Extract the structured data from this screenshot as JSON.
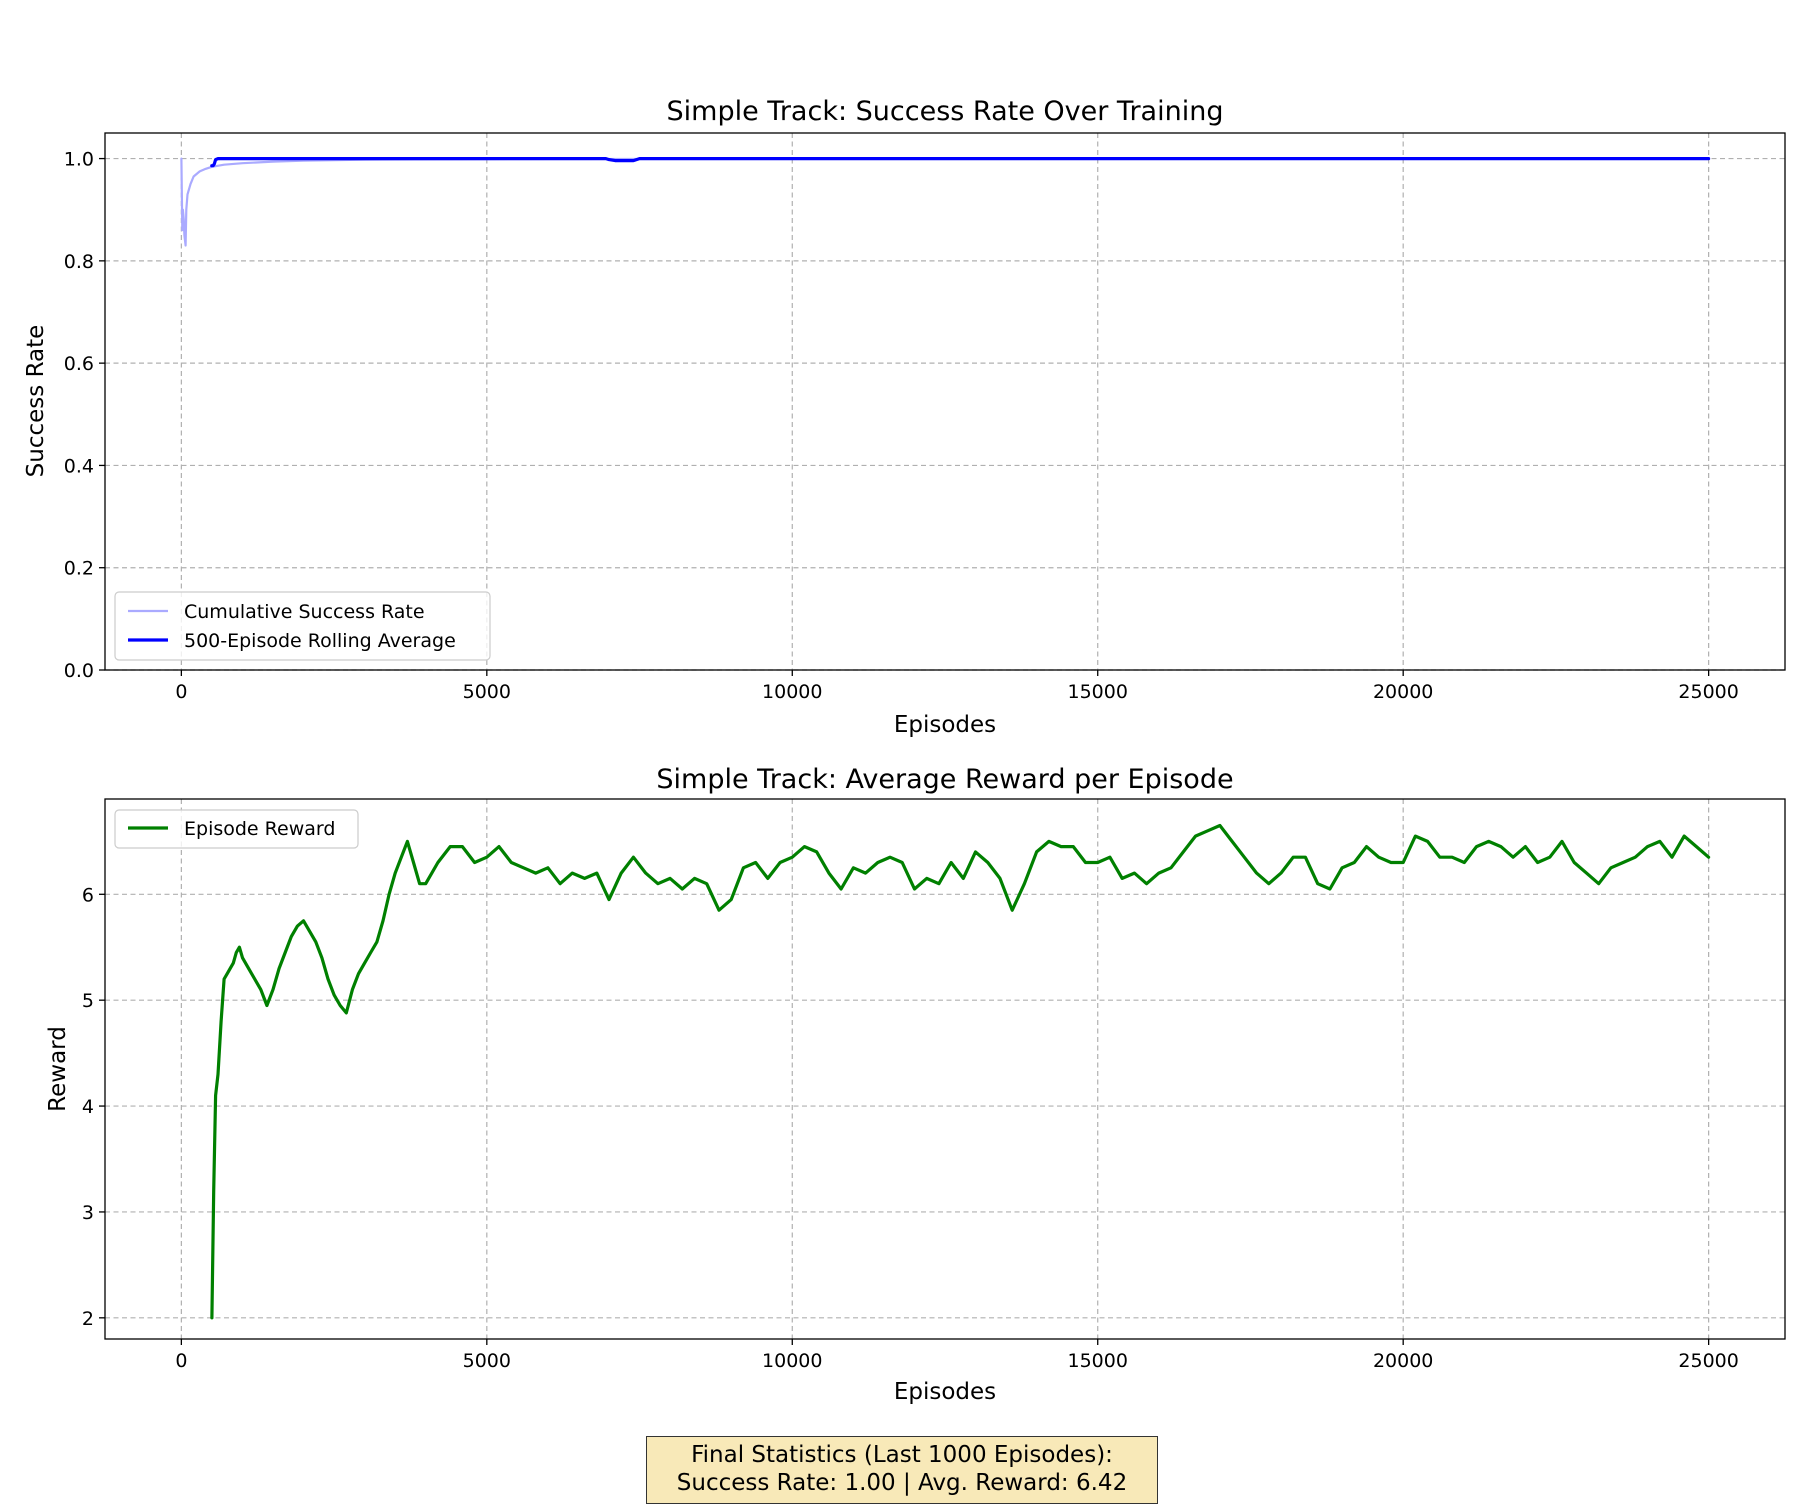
{
  "chart_data": [
    {
      "type": "line",
      "title": "Simple Track: Success Rate Over Training",
      "xlabel": "Episodes",
      "ylabel": "Success Rate",
      "xlim": [
        -1250,
        26250
      ],
      "ylim": [
        0.0,
        1.05
      ],
      "xticks": [
        0,
        5000,
        10000,
        15000,
        20000,
        25000
      ],
      "yticks": [
        "0.0",
        "0.2",
        "0.4",
        "0.6",
        "0.8",
        "1.0"
      ],
      "grid": true,
      "legend_position": "lower-left",
      "series": [
        {
          "name": "Cumulative Success Rate",
          "color": "#aaaaff",
          "x": [
            1,
            15,
            25,
            40,
            50,
            60,
            70,
            80,
            100,
            150,
            200,
            300,
            400,
            500,
            700,
            1000,
            1500,
            2000,
            3000,
            5000,
            10000,
            15000,
            20000,
            25000
          ],
          "y": [
            1.0,
            0.86,
            0.9,
            0.88,
            0.85,
            0.84,
            0.83,
            0.9,
            0.93,
            0.95,
            0.965,
            0.975,
            0.98,
            0.984,
            0.988,
            0.991,
            0.994,
            0.996,
            0.998,
            0.999,
            0.9995,
            0.9997,
            0.9998,
            0.9999
          ]
        },
        {
          "name": "500-Episode Rolling Average",
          "color": "#0000ff",
          "x": [
            499,
            520,
            540,
            560,
            600,
            800,
            1000,
            2000,
            4000,
            6000,
            6950,
            7000,
            7100,
            7400,
            7450,
            7500,
            8000,
            10000,
            15000,
            20000,
            25000
          ],
          "y": [
            0.986,
            0.986,
            0.99,
            0.998,
            1.0,
            1.0,
            1.0,
            1.0,
            1.0,
            1.0,
            1.0,
            0.998,
            0.996,
            0.996,
            0.998,
            1.0,
            1.0,
            1.0,
            1.0,
            1.0,
            1.0
          ]
        }
      ]
    },
    {
      "type": "line",
      "title": "Simple Track: Average Reward per Episode",
      "xlabel": "Episodes",
      "ylabel": "Reward",
      "xlim": [
        -1250,
        26250
      ],
      "ylim": [
        1.8,
        6.9
      ],
      "xticks": [
        0,
        5000,
        10000,
        15000,
        20000,
        25000
      ],
      "yticks": [
        "2",
        "3",
        "4",
        "5",
        "6"
      ],
      "grid": true,
      "legend_position": "upper-left",
      "series": [
        {
          "name": "Episode Reward",
          "color": "#008000",
          "x": [
            500,
            530,
            560,
            600,
            650,
            700,
            750,
            800,
            850,
            900,
            950,
            1000,
            1100,
            1200,
            1300,
            1400,
            1500,
            1600,
            1700,
            1800,
            1900,
            2000,
            2100,
            2200,
            2300,
            2400,
            2500,
            2600,
            2700,
            2800,
            2900,
            3000,
            3100,
            3200,
            3300,
            3400,
            3500,
            3600,
            3700,
            3800,
            3900,
            4000,
            4200,
            4400,
            4600,
            4800,
            5000,
            5200,
            5400,
            5600,
            5800,
            6000,
            6200,
            6400,
            6600,
            6800,
            7000,
            7200,
            7400,
            7600,
            7800,
            8000,
            8200,
            8400,
            8600,
            8800,
            9000,
            9200,
            9400,
            9600,
            9800,
            10000,
            10200,
            10400,
            10600,
            10800,
            11000,
            11200,
            11400,
            11600,
            11800,
            12000,
            12200,
            12400,
            12600,
            12800,
            13000,
            13200,
            13400,
            13600,
            13800,
            14000,
            14200,
            14400,
            14600,
            14800,
            15000,
            15200,
            15400,
            15600,
            15800,
            16000,
            16200,
            16400,
            16600,
            16800,
            17000,
            17200,
            17400,
            17600,
            17800,
            18000,
            18200,
            18400,
            18600,
            18800,
            19000,
            19200,
            19400,
            19600,
            19800,
            20000,
            20200,
            20400,
            20600,
            20800,
            21000,
            21200,
            21400,
            21600,
            21800,
            22000,
            22200,
            22400,
            22600,
            22800,
            23000,
            23200,
            23400,
            23600,
            23800,
            24000,
            24200,
            24400,
            24600,
            24800,
            25000
          ],
          "y": [
            2.0,
            3.2,
            4.1,
            4.3,
            4.8,
            5.2,
            5.25,
            5.3,
            5.35,
            5.45,
            5.5,
            5.4,
            5.3,
            5.2,
            5.1,
            4.95,
            5.1,
            5.3,
            5.45,
            5.6,
            5.7,
            5.75,
            5.65,
            5.55,
            5.4,
            5.2,
            5.05,
            4.95,
            4.88,
            5.1,
            5.25,
            5.35,
            5.45,
            5.55,
            5.75,
            6.0,
            6.2,
            6.35,
            6.5,
            6.3,
            6.1,
            6.1,
            6.3,
            6.45,
            6.45,
            6.3,
            6.35,
            6.45,
            6.3,
            6.25,
            6.2,
            6.25,
            6.1,
            6.2,
            6.15,
            6.2,
            5.95,
            6.2,
            6.35,
            6.2,
            6.1,
            6.15,
            6.05,
            6.15,
            6.1,
            5.85,
            5.95,
            6.25,
            6.3,
            6.15,
            6.3,
            6.35,
            6.45,
            6.4,
            6.2,
            6.05,
            6.25,
            6.2,
            6.3,
            6.35,
            6.3,
            6.05,
            6.15,
            6.1,
            6.3,
            6.15,
            6.4,
            6.3,
            6.15,
            5.85,
            6.1,
            6.4,
            6.5,
            6.45,
            6.45,
            6.3,
            6.3,
            6.35,
            6.15,
            6.2,
            6.1,
            6.2,
            6.25,
            6.4,
            6.55,
            6.6,
            6.65,
            6.5,
            6.35,
            6.2,
            6.1,
            6.2,
            6.35,
            6.35,
            6.1,
            6.05,
            6.25,
            6.3,
            6.45,
            6.35,
            6.3,
            6.3,
            6.55,
            6.5,
            6.35,
            6.35,
            6.3,
            6.45,
            6.5,
            6.45,
            6.35,
            6.45,
            6.3,
            6.35,
            6.5,
            6.3,
            6.2,
            6.1,
            6.25,
            6.3,
            6.35,
            6.45,
            6.5,
            6.35,
            6.55,
            6.45,
            6.35
          ]
        }
      ]
    }
  ],
  "stats_box": {
    "line1": "Final Statistics (Last 1000 Episodes):",
    "line2": "Success Rate: 1.00 | Avg. Reward: 6.42"
  }
}
